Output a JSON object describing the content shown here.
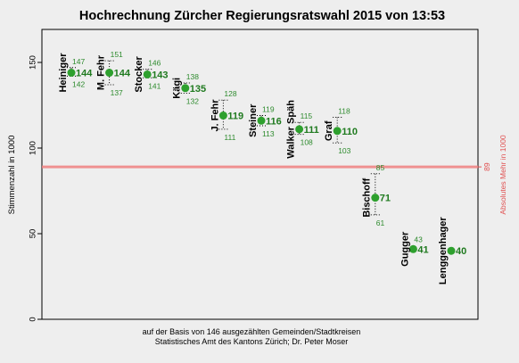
{
  "chart_data": {
    "type": "scatter",
    "title": "Hochrechnung Zürcher Regierungsratswahl 2015 von 13:53",
    "ylabel": "Stimmenzahl in 1000",
    "ylim": [
      0,
      170
    ],
    "yticks": [
      0,
      50,
      100,
      150
    ],
    "reference_line": {
      "value": 89,
      "label": "89",
      "axis_label": "Absolutes Mehr in 1000",
      "color": "#f08080"
    },
    "point_color": "#2ea02e",
    "value_color": "#1f7a1f",
    "points": [
      {
        "name": "Heiniger",
        "value": 144,
        "low": 142,
        "high": 147
      },
      {
        "name": "M. Fehr",
        "value": 144,
        "low": 137,
        "high": 151
      },
      {
        "name": "Stocker",
        "value": 143,
        "low": 141,
        "high": 146
      },
      {
        "name": "Kägi",
        "value": 135,
        "low": 132,
        "high": 138
      },
      {
        "name": "J. Fehr",
        "value": 119,
        "low": 111,
        "high": 128
      },
      {
        "name": "Steiner",
        "value": 116,
        "low": 113,
        "high": 119
      },
      {
        "name": "Walker Späh",
        "value": 111,
        "low": 108,
        "high": 115
      },
      {
        "name": "Graf",
        "value": 110,
        "low": 103,
        "high": 118
      },
      {
        "name": "Bischoff",
        "value": 71,
        "low": 61,
        "high": 85
      },
      {
        "name": "Gugger",
        "value": 41,
        "low": null,
        "high": 43
      },
      {
        "name": "Lenggenhager",
        "value": 40,
        "low": null,
        "high": null
      }
    ],
    "caption_lines": [
      "auf der Basis von 146 ausgezählten Gemeinden/Stadtkreisen",
      "Statistisches Amt des Kantons Zürich; Dr. Peter Moser"
    ]
  }
}
